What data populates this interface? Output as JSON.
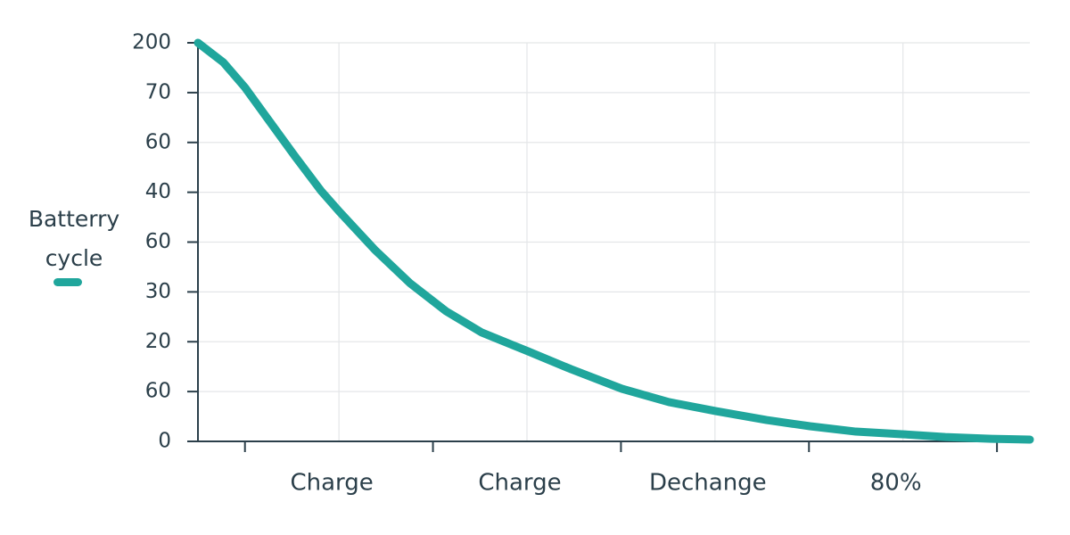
{
  "chart_data": {
    "type": "line",
    "ylim": [
      0,
      200
    ],
    "yticks": [
      0,
      {
        "value": 25,
        "label": "60"
      },
      {
        "value": 50,
        "label": "20"
      },
      {
        "value": 75,
        "label": "30"
      },
      {
        "value": 100,
        "label": "60"
      },
      {
        "value": 125,
        "label": "40"
      },
      {
        "value": 150,
        "label": "60"
      },
      {
        "value": 175,
        "label": "70"
      },
      200
    ],
    "xlim": [
      0,
      8.85
    ],
    "xticks": [
      {
        "value": 1.5,
        "label": "Charge"
      },
      {
        "value": 3.5,
        "label": "Charge"
      },
      {
        "value": 5.5,
        "label": "Dechange"
      },
      {
        "value": 7.5,
        "label": "80%"
      }
    ],
    "xminor_ticks": [
      0.5,
      2.5,
      4.5,
      6.5,
      8.5
    ],
    "grid": true,
    "legend": "left",
    "x": [
      0,
      0.27,
      0.5,
      0.74,
      1.03,
      1.31,
      1.51,
      1.88,
      2.26,
      2.64,
      3.02,
      3.51,
      3.97,
      4.51,
      5.01,
      5.51,
      6.05,
      6.51,
      7.0,
      7.49,
      7.95,
      8.44,
      8.85
    ],
    "series": [
      {
        "name": "Batterry cycle",
        "color": "#20a69c",
        "values": [
          200,
          190.2,
          177.6,
          162,
          143.2,
          125.7,
          115,
          96.2,
          79.2,
          65.3,
          54.6,
          45.2,
          36.2,
          26.4,
          19.7,
          15.2,
          10.7,
          7.6,
          4.9,
          3.6,
          2.2,
          1.3,
          0.9
        ]
      }
    ]
  }
}
